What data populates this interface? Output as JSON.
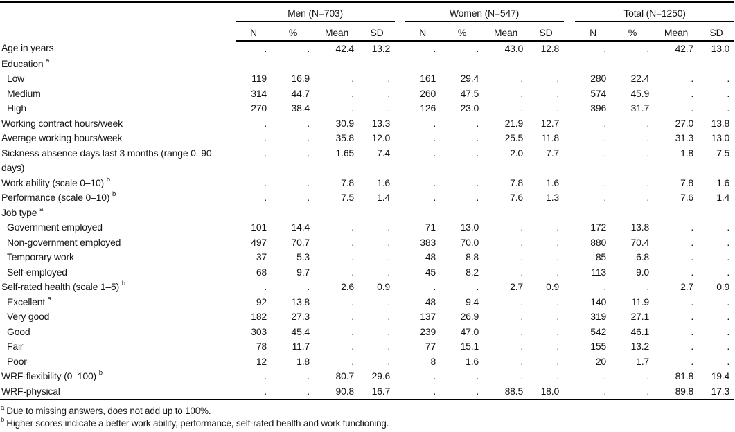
{
  "table": {
    "groups": [
      {
        "label": "Men (N=703)"
      },
      {
        "label": "Women (N=547)"
      },
      {
        "label": "Total (N=1250)"
      }
    ],
    "subheaders": [
      "N",
      "%",
      "Mean",
      "SD"
    ],
    "rows": [
      {
        "label": "Age in years",
        "sup": "",
        "indent": false,
        "cells": [
          ".",
          ".",
          "42.4",
          "13.2",
          ".",
          ".",
          "43.0",
          "12.8",
          ".",
          ".",
          "42.7",
          "13.0"
        ]
      },
      {
        "label": "Education",
        "sup": "a",
        "indent": false,
        "cells": [
          "",
          "",
          "",
          "",
          "",
          "",
          "",
          "",
          "",
          "",
          "",
          ""
        ]
      },
      {
        "label": "Low",
        "sup": "",
        "indent": true,
        "cells": [
          "119",
          "16.9",
          ".",
          ".",
          "161",
          "29.4",
          ".",
          ".",
          "280",
          "22.4",
          ".",
          "."
        ]
      },
      {
        "label": "Medium",
        "sup": "",
        "indent": true,
        "cells": [
          "314",
          "44.7",
          ".",
          ".",
          "260",
          "47.5",
          ".",
          ".",
          "574",
          "45.9",
          ".",
          "."
        ]
      },
      {
        "label": "High",
        "sup": "",
        "indent": true,
        "cells": [
          "270",
          "38.4",
          ".",
          ".",
          "126",
          "23.0",
          ".",
          ".",
          "396",
          "31.7",
          ".",
          "."
        ]
      },
      {
        "label": "Working contract hours/week",
        "sup": "",
        "indent": false,
        "cells": [
          ".",
          ".",
          "30.9",
          "13.3",
          ".",
          ".",
          "21.9",
          "12.7",
          ".",
          ".",
          "27.0",
          "13.8"
        ]
      },
      {
        "label": "Average working hours/week",
        "sup": "",
        "indent": false,
        "cells": [
          ".",
          ".",
          "35.8",
          "12.0",
          ".",
          ".",
          "25.5",
          "11.8",
          ".",
          ".",
          "31.3",
          "13.0"
        ]
      },
      {
        "label": "Sickness absence days last 3 months (range 0–90 days)",
        "sup": "",
        "indent": false,
        "cells": [
          ".",
          ".",
          "1.65",
          "7.4",
          ".",
          ".",
          "2.0",
          "7.7",
          ".",
          ".",
          "1.8",
          "7.5"
        ]
      },
      {
        "label": "Work ability (scale 0–10)",
        "sup": "b",
        "indent": false,
        "cells": [
          ".",
          ".",
          "7.8",
          "1.6",
          ".",
          ".",
          "7.8",
          "1.6",
          ".",
          ".",
          "7.8",
          "1.6"
        ]
      },
      {
        "label": "Performance (scale 0–10)",
        "sup": "b",
        "indent": false,
        "cells": [
          ".",
          ".",
          "7.5",
          "1.4",
          ".",
          ".",
          "7.6",
          "1.3",
          ".",
          ".",
          "7.6",
          "1.4"
        ]
      },
      {
        "label": "Job type",
        "sup": "a",
        "indent": false,
        "cells": [
          "",
          "",
          "",
          "",
          "",
          "",
          "",
          "",
          "",
          "",
          "",
          ""
        ]
      },
      {
        "label": "Government employed",
        "sup": "",
        "indent": true,
        "cells": [
          "101",
          "14.4",
          ".",
          ".",
          "71",
          "13.0",
          ".",
          ".",
          "172",
          "13.8",
          ".",
          "."
        ]
      },
      {
        "label": "Non-government employed",
        "sup": "",
        "indent": true,
        "cells": [
          "497",
          "70.7",
          ".",
          ".",
          "383",
          "70.0",
          ".",
          ".",
          "880",
          "70.4",
          ".",
          "."
        ]
      },
      {
        "label": "Temporary work",
        "sup": "",
        "indent": true,
        "cells": [
          "37",
          "5.3",
          ".",
          ".",
          "48",
          "8.8",
          ".",
          ".",
          "85",
          "6.8",
          ".",
          "."
        ]
      },
      {
        "label": "Self-employed",
        "sup": "",
        "indent": true,
        "cells": [
          "68",
          "9.7",
          ".",
          ".",
          "45",
          "8.2",
          ".",
          ".",
          "113",
          "9.0",
          ".",
          "."
        ]
      },
      {
        "label": "Self-rated health (scale 1–5)",
        "sup": "b",
        "indent": false,
        "cells": [
          ".",
          ".",
          "2.6",
          "0.9",
          ".",
          ".",
          "2.7",
          "0.9",
          ".",
          ".",
          "2.7",
          "0.9"
        ]
      },
      {
        "label": "Excellent",
        "sup": "a",
        "indent": true,
        "cells": [
          "92",
          "13.8",
          ".",
          ".",
          "48",
          "9.4",
          ".",
          ".",
          "140",
          "11.9",
          ".",
          "."
        ]
      },
      {
        "label": "Very good",
        "sup": "",
        "indent": true,
        "cells": [
          "182",
          "27.3",
          ".",
          ".",
          "137",
          "26.9",
          ".",
          ".",
          "319",
          "27.1",
          ".",
          "."
        ]
      },
      {
        "label": "Good",
        "sup": "",
        "indent": true,
        "cells": [
          "303",
          "45.4",
          ".",
          ".",
          "239",
          "47.0",
          ".",
          ".",
          "542",
          "46.1",
          ".",
          "."
        ]
      },
      {
        "label": "Fair",
        "sup": "",
        "indent": true,
        "cells": [
          "78",
          "11.7",
          ".",
          ".",
          "77",
          "15.1",
          ".",
          ".",
          "155",
          "13.2",
          ".",
          "."
        ]
      },
      {
        "label": "Poor",
        "sup": "",
        "indent": true,
        "cells": [
          "12",
          "1.8",
          ".",
          ".",
          "8",
          "1.6",
          ".",
          ".",
          "20",
          "1.7",
          ".",
          "."
        ]
      },
      {
        "label": "WRF-flexibility (0–100)",
        "sup": "b",
        "indent": false,
        "cells": [
          ".",
          ".",
          "80.7",
          "29.6",
          ".",
          ".",
          ".",
          ".",
          ".",
          ".",
          "81.8",
          "19.4"
        ]
      },
      {
        "label": "WRF-physical",
        "sup": "",
        "indent": false,
        "cells": [
          ".",
          ".",
          "90.8",
          "16.7",
          ".",
          ".",
          "88.5",
          "18.0",
          ".",
          ".",
          "89.8",
          "17.3"
        ]
      }
    ],
    "footnotes": [
      {
        "marker": "a",
        "text": "Due to missing answers, does not add up to 100%."
      },
      {
        "marker": "b",
        "text": "Higher scores indicate a better work ability, performance, self-rated health and work functioning."
      }
    ]
  }
}
